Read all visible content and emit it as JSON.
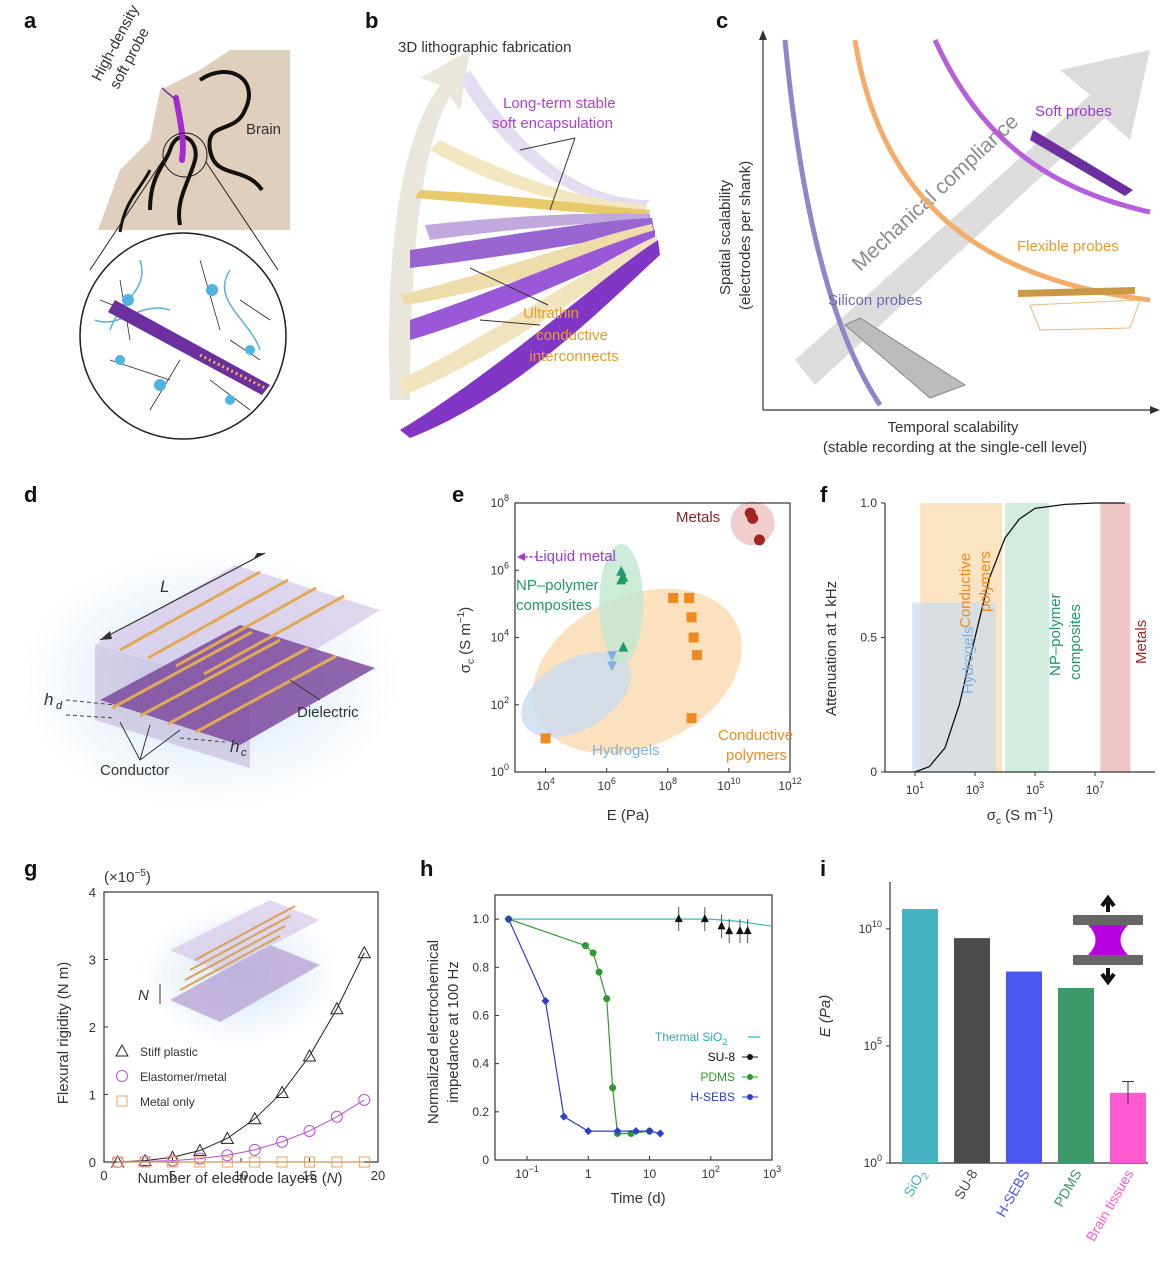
{
  "panels": {
    "a": {
      "letter": "a",
      "probe_label_1": "High-density",
      "probe_label_2": "soft probe",
      "brain_label": "Brain"
    },
    "b": {
      "letter": "b",
      "title": "3D lithographic fabrication",
      "encap_1": "Long-term stable",
      "encap_2": "soft encapsulation",
      "inter_1": "Ultrathin",
      "inter_2": "conductive",
      "inter_3": "interconnects"
    },
    "c": {
      "letter": "c",
      "ylabel_1": "Spatial scalability",
      "ylabel_2": "(electrodes per shank)",
      "xlabel_1": "Temporal scalability",
      "xlabel_2": "(stable recording at the single-cell level)",
      "arrow_text": "Mechanical compliance",
      "soft": "Soft probes",
      "flexible": "Flexible probes",
      "silicon": "Silicon probes"
    },
    "d": {
      "letter": "d",
      "L": "L",
      "hd": "h",
      "hd_sub": "d",
      "hc": "h",
      "hc_sub": "c",
      "dielectric": "Dielectric",
      "conductor": "Conductor"
    },
    "e": {
      "letter": "e",
      "ylabel": "σ",
      "ylabel_sub": "c",
      "ylabel_unit": " (S m",
      "ylabel_exp": "−1",
      "ylabel_close": ")",
      "xlabel": "E (Pa)",
      "yticks": [
        "10",
        "10",
        "10",
        "10",
        "10"
      ],
      "yexp": [
        "0",
        "2",
        "4",
        "6",
        "8"
      ],
      "xticks": [
        "10",
        "10",
        "10",
        "10",
        "10"
      ],
      "xexp": [
        "4",
        "6",
        "8",
        "10",
        "12"
      ],
      "metals": "Metals",
      "liquid_metal": "Liquid metal",
      "np_1": "NP–polymer",
      "np_2": "composites",
      "hydrogels": "Hydrogels",
      "cp_1": "Conductive",
      "cp_2": "polymers"
    },
    "f": {
      "letter": "f",
      "ylabel": "Attenuation at 1 kHz",
      "xlabel": "σ",
      "xlabel_sub": "c",
      "xlabel_unit": " (S m",
      "xlabel_exp": "−1",
      "xlabel_close": ")",
      "yticks": [
        "0",
        "0.5",
        "1.0"
      ],
      "xticks": [
        "10",
        "10",
        "10",
        "10"
      ],
      "xexp": [
        "1",
        "3",
        "5",
        "7"
      ],
      "cp_1": "Conductive",
      "cp_2": "polymers",
      "hydrogels": "Hydrogels",
      "np_1": "NP–polymer",
      "np_2": "composites",
      "metals": "Metals"
    },
    "g": {
      "letter": "g",
      "ylabel": "Flexural rigidity (N m)",
      "xlabel": "Number of electrode layers (",
      "xlabel_N": "N",
      "xlabel_close": ")",
      "scale": "(×10",
      "scale_exp": "−5",
      "scale_close": ")",
      "yticks": [
        "0",
        "1",
        "2",
        "3",
        "4"
      ],
      "xticks": [
        "0",
        "5",
        "10",
        "15",
        "20"
      ],
      "N_label": "N",
      "legend": [
        "Stiff plastic",
        "Elastomer/metal",
        "Metal only"
      ]
    },
    "h": {
      "letter": "h",
      "ylabel_1": "Normalized electrochemical",
      "ylabel_2": "impedance at 100 Hz",
      "xlabel": "Time (d)",
      "yticks": [
        "0",
        "0.2",
        "0.4",
        "0.6",
        "0.8",
        "1.0"
      ],
      "xticks": [
        "10",
        "1",
        "10",
        "10",
        "10"
      ],
      "xexp": [
        "−1",
        "",
        "",
        "2",
        "3"
      ],
      "legend_sio2": "Thermal SiO",
      "legend_sio2_sub": "2",
      "legend": [
        "SU-8",
        "PDMS",
        "H-SEBS"
      ]
    },
    "i": {
      "letter": "i",
      "ylabel": "E (Pa)",
      "yticks": [
        "10",
        "10",
        "10"
      ],
      "yexp": [
        "0",
        "5",
        "10"
      ],
      "categories": [
        "SiO",
        "SU-8",
        "H-SEBS",
        "PDMS",
        "Brain tissues"
      ],
      "sio2_sub": "2"
    }
  },
  "colors": {
    "purple": "#8a3fc6",
    "soft_purple": "#b35ad6",
    "orange": "#f2a455",
    "silicon_blue": "#7b78c2",
    "gray_arrow": "#d9d9d9",
    "metals_red": "#a32222",
    "np_green": "#1f9a6a",
    "hydrogel_blue": "#7fb2e0",
    "cp_orange": "#f08a1e"
  },
  "chart_data": [
    {
      "panel": "e",
      "type": "scatter",
      "xlabel": "E (Pa)",
      "ylabel": "σc (S m−1)",
      "xscale": "log",
      "yscale": "log",
      "xlim": [
        1000,
        1000000000000
      ],
      "ylim": [
        1,
        100000000
      ],
      "series": [
        {
          "name": "Metals",
          "x": [
            50000000000,
            60000000000,
            100000000000
          ],
          "y": [
            50000000,
            35000000,
            8000000
          ]
        },
        {
          "name": "NP–polymer composites",
          "x": [
            3000000,
            3500000,
            3000000,
            3500000
          ],
          "y": [
            900000,
            600000,
            500000,
            5000
          ]
        },
        {
          "name": "Hydrogels",
          "x": [
            10000,
            1500000,
            1500000
          ],
          "y": [
            10,
            3000,
            1500
          ]
        },
        {
          "name": "Conductive polymers",
          "x": [
            10000,
            150000000,
            500000000,
            600000000,
            700000000,
            900000000,
            600000000
          ],
          "y": [
            10,
            150000,
            150000,
            40000,
            10000,
            3000,
            40
          ]
        }
      ]
    },
    {
      "panel": "f",
      "type": "line",
      "xlabel": "σc (S m−1)",
      "ylabel": "Attenuation at 1 kHz",
      "xscale": "log",
      "xlim": [
        1,
        1000000000
      ],
      "ylim": [
        0,
        1
      ],
      "series": [
        {
          "x": [
            10,
            30,
            100,
            300,
            1000,
            3000,
            10000,
            30000,
            100000,
            1000000,
            10000000,
            100000000
          ],
          "y": [
            0.0,
            0.02,
            0.09,
            0.25,
            0.5,
            0.72,
            0.87,
            0.94,
            0.98,
            0.995,
            1.0,
            1.0
          ]
        }
      ]
    },
    {
      "panel": "g",
      "type": "line",
      "xlabel": "Number of electrode layers (N)",
      "ylabel": "Flexural rigidity (N m)",
      "xlim": [
        0,
        20
      ],
      "ylim": [
        0,
        4
      ],
      "categories": [
        1,
        3,
        5,
        7,
        9,
        11,
        13,
        15,
        17,
        19
      ],
      "series": [
        {
          "name": "Stiff plastic",
          "values": [
            0.0,
            0.02,
            0.07,
            0.17,
            0.35,
            0.64,
            1.03,
            1.57,
            2.27,
            3.1
          ]
        },
        {
          "name": "Elastomer/metal",
          "values": [
            0.0,
            0.01,
            0.02,
            0.05,
            0.1,
            0.18,
            0.3,
            0.46,
            0.67,
            0.92
          ]
        },
        {
          "name": "Metal only",
          "values": [
            0.0,
            0.0,
            0.0,
            0.0,
            0.0,
            0.0,
            0.0,
            0.0,
            0.0,
            0.0
          ]
        }
      ]
    },
    {
      "panel": "h",
      "type": "line",
      "xlabel": "Time (d)",
      "ylabel": "Normalized electrochemical impedance at 100 Hz",
      "xscale": "log",
      "xlim": [
        0.03,
        1000
      ],
      "ylim": [
        0,
        1.1
      ],
      "series": [
        {
          "name": "Thermal SiO2",
          "x": [
            0.05,
            1,
            10,
            100,
            300,
            1000
          ],
          "y": [
            1.0,
            1.0,
            1.0,
            1.0,
            0.99,
            0.97
          ]
        },
        {
          "name": "SU-8",
          "x": [
            30,
            80,
            150,
            200,
            300,
            400
          ],
          "y": [
            1.0,
            1.0,
            0.97,
            0.95,
            0.95,
            0.95
          ]
        },
        {
          "name": "PDMS",
          "x": [
            0.05,
            0.9,
            1.2,
            1.5,
            2,
            2.5,
            3,
            5,
            10
          ],
          "y": [
            1.0,
            0.89,
            0.86,
            0.78,
            0.67,
            0.3,
            0.11,
            0.11,
            0.12
          ]
        },
        {
          "name": "H-SEBS",
          "x": [
            0.05,
            0.2,
            0.4,
            1,
            3,
            6,
            10,
            15
          ],
          "y": [
            1.0,
            0.66,
            0.18,
            0.12,
            0.12,
            0.12,
            0.12,
            0.11
          ]
        }
      ]
    },
    {
      "panel": "i",
      "type": "bar",
      "ylabel": "E (Pa)",
      "yscale": "log",
      "ylim": [
        1,
        1000000000000
      ],
      "categories": [
        "SiO2",
        "SU-8",
        "H-SEBS",
        "PDMS",
        "Brain tissues"
      ],
      "values": [
        70000000000,
        4000000000,
        150000000,
        30000000,
        1000
      ]
    }
  ]
}
